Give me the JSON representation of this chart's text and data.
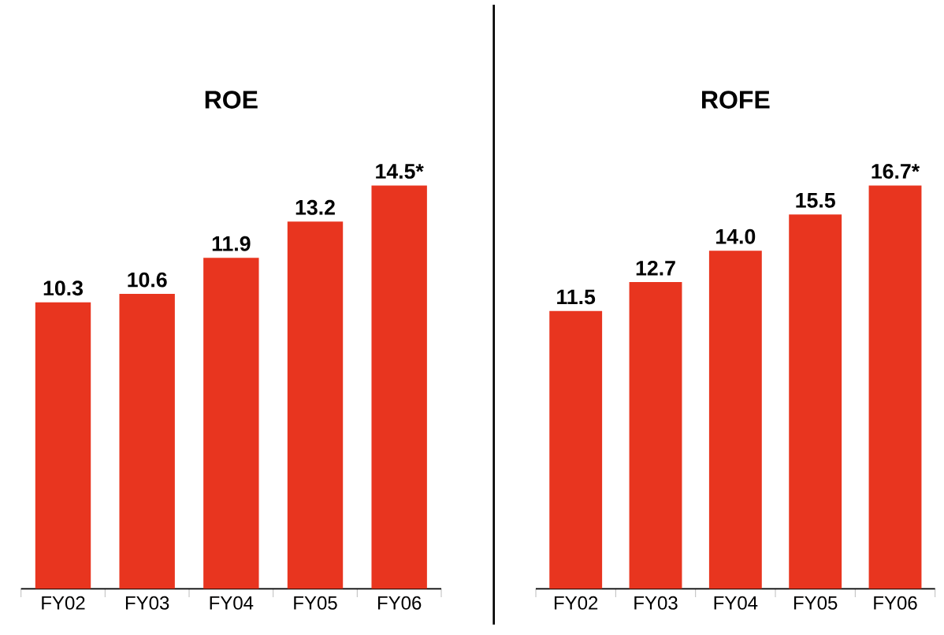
{
  "chart_data": [
    {
      "type": "bar",
      "title": "ROE",
      "categories": [
        "FY02",
        "FY03",
        "FY04",
        "FY05",
        "FY06"
      ],
      "values": [
        10.3,
        10.6,
        11.9,
        13.2,
        14.5
      ],
      "value_labels": [
        "10.3",
        "10.6",
        "11.9",
        "13.2",
        "14.5*"
      ],
      "color": "#e8351f"
    },
    {
      "type": "bar",
      "title": "ROFE",
      "categories": [
        "FY02",
        "FY03",
        "FY04",
        "FY05",
        "FY06"
      ],
      "values": [
        11.5,
        12.7,
        14.0,
        15.5,
        16.7
      ],
      "value_labels": [
        "11.5",
        "12.7",
        "14.0",
        "15.5",
        "16.7*"
      ],
      "color": "#e8351f"
    }
  ]
}
